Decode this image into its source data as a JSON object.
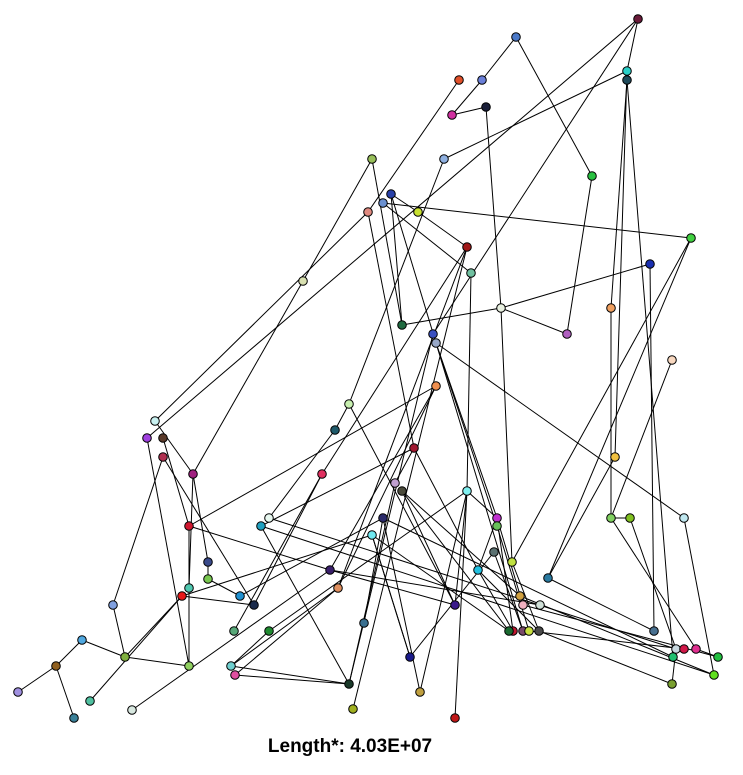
{
  "caption": "Length*: 4.03E+07",
  "graph": {
    "nodes": [
      {
        "id": "n1",
        "color": "#6a1b3a"
      },
      {
        "id": "n2",
        "color": "#4a78c8"
      },
      {
        "id": "n3",
        "color": "#e0502a"
      },
      {
        "id": "n4",
        "color": "#6a7fd8"
      },
      {
        "id": "n5",
        "color": "#2ad0c8"
      },
      {
        "id": "n6",
        "color": "#1f4a5a"
      },
      {
        "id": "n7",
        "color": "#d030a0"
      },
      {
        "id": "n8",
        "color": "#1a1f3a"
      },
      {
        "id": "n9",
        "color": "#98bf5a"
      },
      {
        "id": "n10",
        "color": "#8fb0e0"
      },
      {
        "id": "n11",
        "color": "#28c040"
      },
      {
        "id": "n12",
        "color": "#2840a8"
      },
      {
        "id": "n13",
        "color": "#6a90d0"
      },
      {
        "id": "n14",
        "color": "#e08a80"
      },
      {
        "id": "n15",
        "color": "#c8e030"
      },
      {
        "id": "n16",
        "color": "#40d040"
      },
      {
        "id": "n17",
        "color": "#a01818"
      },
      {
        "id": "n18",
        "color": "#70c0a0"
      },
      {
        "id": "n19",
        "color": "#1a2fb0"
      },
      {
        "id": "n20",
        "color": "#d8e0b0"
      },
      {
        "id": "n21",
        "color": "#e8f0e0"
      },
      {
        "id": "n22",
        "color": "#f0a060"
      },
      {
        "id": "n23",
        "color": "#b060c0"
      },
      {
        "id": "n24",
        "color": "#1f6a40"
      },
      {
        "id": "n25",
        "color": "#3a50c0"
      },
      {
        "id": "n26",
        "color": "#98a8c8"
      },
      {
        "id": "n27",
        "color": "#f8d8c0"
      },
      {
        "id": "n28",
        "color": "#f09050"
      },
      {
        "id": "n29",
        "color": "#c8f0b0"
      },
      {
        "id": "n30",
        "color": "#1f5a6a"
      },
      {
        "id": "n31",
        "color": "#c8f0f0"
      },
      {
        "id": "n32",
        "color": "#5a3a2a"
      },
      {
        "id": "n33",
        "color": "#a040e0"
      },
      {
        "id": "n34",
        "color": "#b03050"
      },
      {
        "id": "n35",
        "color": "#a02080"
      },
      {
        "id": "n36",
        "color": "#e03060"
      },
      {
        "id": "n37",
        "color": "#f0c040"
      },
      {
        "id": "n38",
        "color": "#a01830"
      },
      {
        "id": "n39",
        "color": "#c0a0d0"
      },
      {
        "id": "n40",
        "color": "#4a4a3a"
      },
      {
        "id": "n41",
        "color": "#80f0f0"
      },
      {
        "id": "n42",
        "color": "#80d060"
      },
      {
        "id": "n43",
        "color": "#c0e8f0"
      },
      {
        "id": "n44",
        "color": "#e8f8f0"
      },
      {
        "id": "n45",
        "color": "#2a2a6a"
      },
      {
        "id": "n46",
        "color": "#c030d0"
      },
      {
        "id": "n47",
        "color": "#20a0c0"
      },
      {
        "id": "n48",
        "color": "#80c020"
      },
      {
        "id": "n49",
        "color": "#d01830"
      },
      {
        "id": "n50",
        "color": "#70e8f0"
      },
      {
        "id": "n51",
        "color": "#68bf5a"
      },
      {
        "id": "n52",
        "color": "#3a4a8a"
      },
      {
        "id": "n53",
        "color": "#5a7070"
      },
      {
        "id": "n54",
        "color": "#7ac850"
      },
      {
        "id": "n55",
        "color": "#bfe040"
      },
      {
        "id": "n56",
        "color": "#20c0e0"
      },
      {
        "id": "n57",
        "color": "#3a1f6a"
      },
      {
        "id": "n58",
        "color": "#2a7aa0"
      },
      {
        "id": "n59",
        "color": "#50c8b0"
      },
      {
        "id": "n60",
        "color": "#e09060"
      },
      {
        "id": "n61",
        "color": "#2090d0"
      },
      {
        "id": "n62",
        "color": "#e81818"
      },
      {
        "id": "n63",
        "color": "#1a2a4a"
      },
      {
        "id": "n64",
        "color": "#80a0e0"
      },
      {
        "id": "n65",
        "color": "#d0a040"
      },
      {
        "id": "n66",
        "color": "#3a1a8a"
      },
      {
        "id": "n67",
        "color": "#f0b0c0"
      },
      {
        "id": "n68",
        "color": "#d0e0d8"
      },
      {
        "id": "n69",
        "color": "#3a7090"
      },
      {
        "id": "n70",
        "color": "#58a878"
      },
      {
        "id": "n71",
        "color": "#208a30"
      },
      {
        "id": "n72",
        "color": "#c01830"
      },
      {
        "id": "n73",
        "color": "#1a6a30"
      },
      {
        "id": "n74",
        "color": "#7a4a6a"
      },
      {
        "id": "n75",
        "color": "#c8e040"
      },
      {
        "id": "n76",
        "color": "#4a4a4a"
      },
      {
        "id": "n77",
        "color": "#487090"
      },
      {
        "id": "n78",
        "color": "#1a1a8a"
      },
      {
        "id": "n79",
        "color": "#c8d8e0"
      },
      {
        "id": "n80",
        "color": "#d01848"
      },
      {
        "id": "n81",
        "color": "#e03090"
      },
      {
        "id": "n82",
        "color": "#22c040"
      },
      {
        "id": "n83",
        "color": "#20c070"
      },
      {
        "id": "n84",
        "color": "#50a8e0"
      },
      {
        "id": "n85",
        "color": "#80b040"
      },
      {
        "id": "n86",
        "color": "#90d060"
      },
      {
        "id": "n87",
        "color": "#70d0d0"
      },
      {
        "id": "n88",
        "color": "#906020"
      },
      {
        "id": "n89",
        "color": "#e050a0"
      },
      {
        "id": "n90",
        "color": "#1a3a2a"
      },
      {
        "id": "n91",
        "color": "#60e020"
      },
      {
        "id": "n92",
        "color": "#7aa030"
      },
      {
        "id": "n93",
        "color": "#c0a040"
      },
      {
        "id": "n94",
        "color": "#a090e0"
      },
      {
        "id": "n95",
        "color": "#50c0a0"
      },
      {
        "id": "n96",
        "color": "#a0b020"
      }
    ]
  }
}
